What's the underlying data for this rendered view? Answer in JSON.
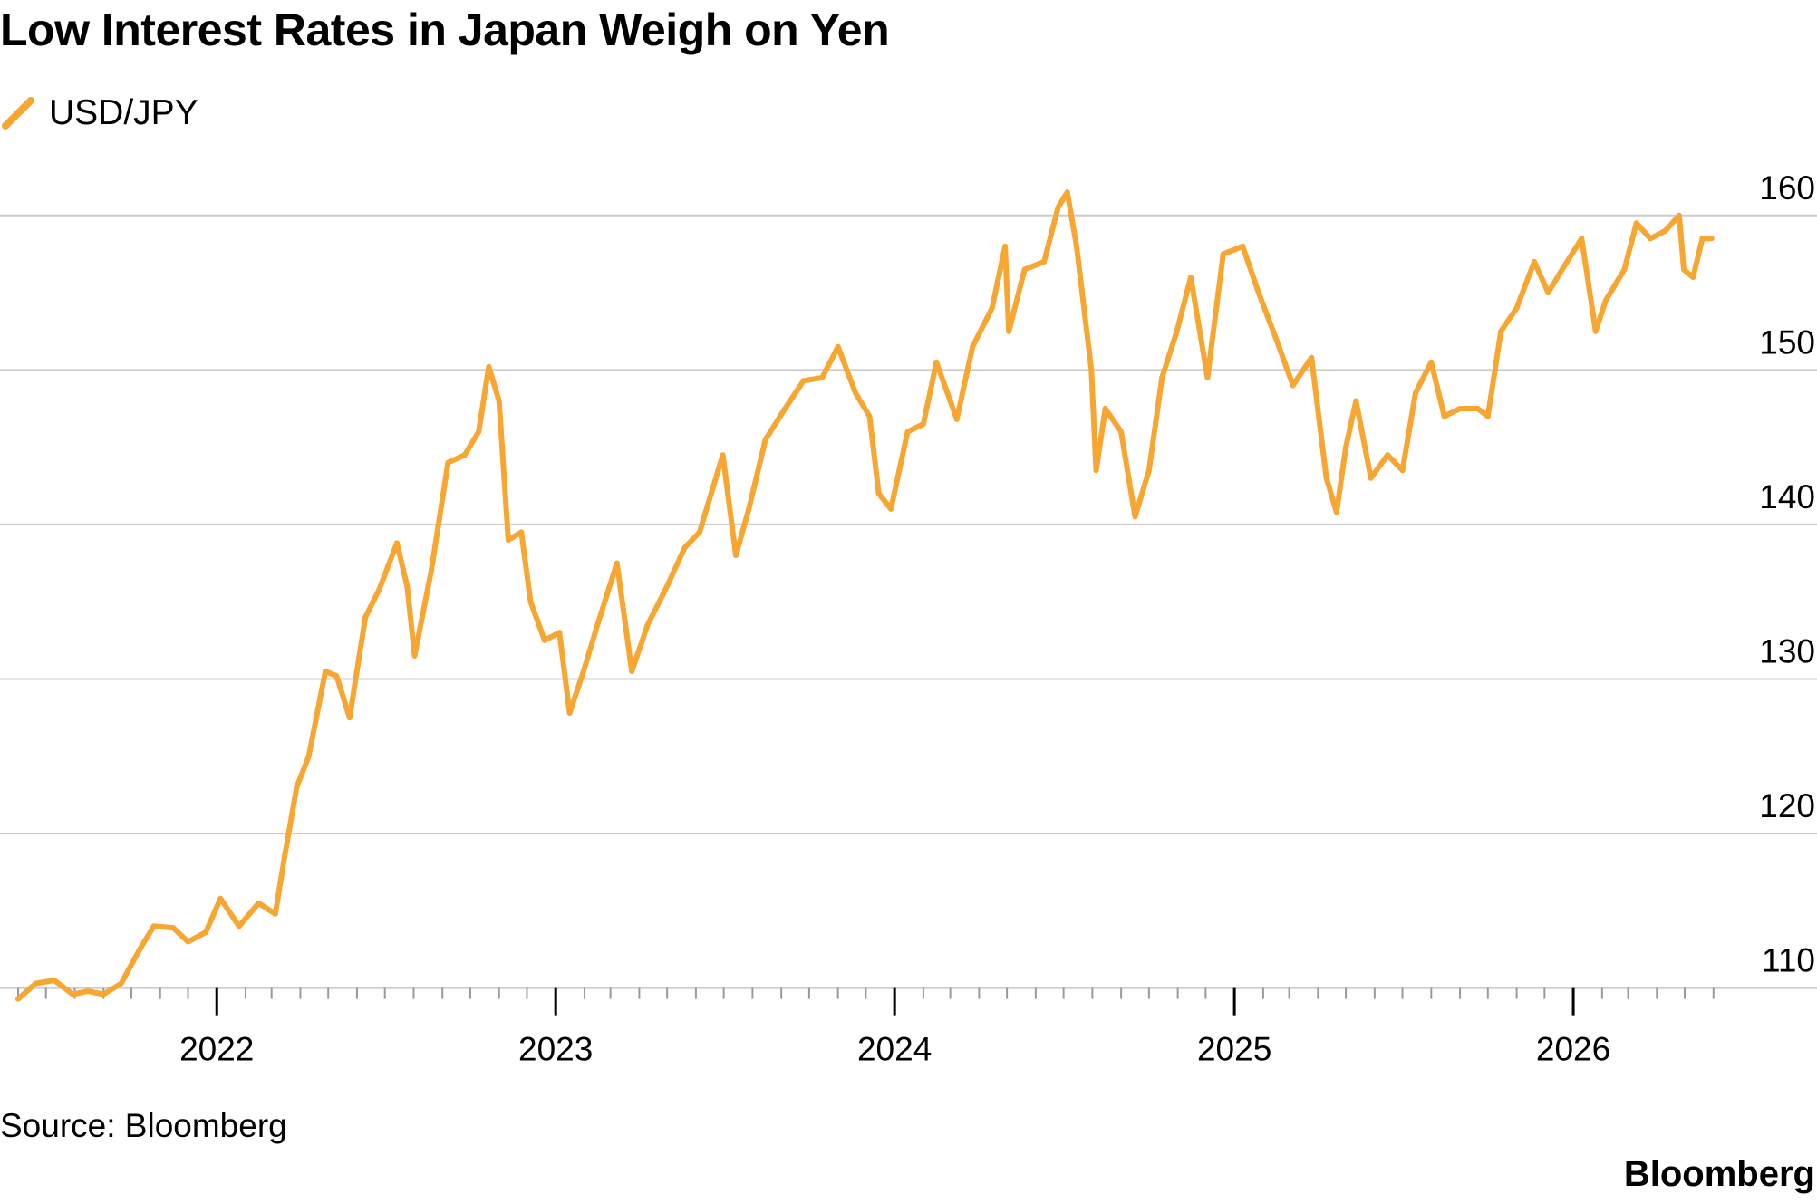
{
  "title": "Low Interest Rates in Japan Weigh on Yen",
  "source": "Source: Bloomberg",
  "brand": "Bloomberg",
  "colors": {
    "line": "#f7a631",
    "grid": "#cccccc",
    "text": "#000000"
  },
  "chart_data": {
    "type": "line",
    "title": "Low Interest Rates in Japan Weigh on Yen",
    "xlabel": "",
    "ylabel": "",
    "grid": true,
    "legend_placement": "top-left",
    "xlim": [
      "2021-06-01",
      "2026-06-10"
    ],
    "ylim": [
      109,
      161
    ],
    "y_ticks": [
      110,
      120,
      130,
      140,
      150,
      160
    ],
    "x_tick_labels": [
      "2022",
      "2023",
      "2024",
      "2025",
      "2026"
    ],
    "x_tick_dates": [
      "2022-01-01",
      "2023-01-01",
      "2024-01-01",
      "2025-01-01",
      "2026-01-01"
    ],
    "series": [
      {
        "name": "USD/JPY",
        "color": "#f7a631",
        "points": [
          [
            "2021-06-01",
            109.3
          ],
          [
            "2021-06-20",
            110.3
          ],
          [
            "2021-07-10",
            110.5
          ],
          [
            "2021-07-30",
            109.6
          ],
          [
            "2021-08-15",
            109.8
          ],
          [
            "2021-09-01",
            109.6
          ],
          [
            "2021-09-20",
            110.3
          ],
          [
            "2021-10-10",
            112.5
          ],
          [
            "2021-10-25",
            114.0
          ],
          [
            "2021-11-15",
            113.9
          ],
          [
            "2021-12-01",
            113.0
          ],
          [
            "2021-12-20",
            113.6
          ],
          [
            "2022-01-05",
            115.8
          ],
          [
            "2022-01-25",
            114.0
          ],
          [
            "2022-02-15",
            115.5
          ],
          [
            "2022-03-05",
            114.8
          ],
          [
            "2022-03-15",
            118.5
          ],
          [
            "2022-03-28",
            123.0
          ],
          [
            "2022-04-10",
            125.0
          ],
          [
            "2022-04-28",
            130.5
          ],
          [
            "2022-05-10",
            130.2
          ],
          [
            "2022-05-24",
            127.5
          ],
          [
            "2022-06-10",
            134.0
          ],
          [
            "2022-06-25",
            135.8
          ],
          [
            "2022-07-14",
            138.8
          ],
          [
            "2022-07-25",
            136.0
          ],
          [
            "2022-08-02",
            131.5
          ],
          [
            "2022-08-20",
            137.0
          ],
          [
            "2022-09-07",
            144.0
          ],
          [
            "2022-09-25",
            144.5
          ],
          [
            "2022-10-10",
            146.0
          ],
          [
            "2022-10-21",
            150.2
          ],
          [
            "2022-11-01",
            148.0
          ],
          [
            "2022-11-11",
            139.0
          ],
          [
            "2022-11-25",
            139.5
          ],
          [
            "2022-12-05",
            135.0
          ],
          [
            "2022-12-20",
            132.5
          ],
          [
            "2023-01-05",
            133.0
          ],
          [
            "2023-01-16",
            127.8
          ],
          [
            "2023-01-31",
            130.5
          ],
          [
            "2023-02-15",
            133.5
          ],
          [
            "2023-03-08",
            137.5
          ],
          [
            "2023-03-24",
            130.5
          ],
          [
            "2023-04-10",
            133.5
          ],
          [
            "2023-05-01",
            136.0
          ],
          [
            "2023-05-20",
            138.5
          ],
          [
            "2023-06-05",
            139.5
          ],
          [
            "2023-06-30",
            144.5
          ],
          [
            "2023-07-14",
            138.0
          ],
          [
            "2023-07-28",
            141.0
          ],
          [
            "2023-08-15",
            145.5
          ],
          [
            "2023-09-05",
            147.5
          ],
          [
            "2023-09-25",
            149.3
          ],
          [
            "2023-10-15",
            149.5
          ],
          [
            "2023-11-01",
            151.5
          ],
          [
            "2023-11-20",
            148.5
          ],
          [
            "2023-12-05",
            147.0
          ],
          [
            "2023-12-15",
            142.0
          ],
          [
            "2023-12-28",
            141.0
          ],
          [
            "2024-01-15",
            146.0
          ],
          [
            "2024-02-01",
            146.5
          ],
          [
            "2024-02-15",
            150.5
          ],
          [
            "2024-03-08",
            146.8
          ],
          [
            "2024-03-25",
            151.5
          ],
          [
            "2024-04-15",
            154.0
          ],
          [
            "2024-04-29",
            158.0
          ],
          [
            "2024-05-03",
            152.5
          ],
          [
            "2024-05-20",
            156.5
          ],
          [
            "2024-06-10",
            157.0
          ],
          [
            "2024-06-25",
            160.5
          ],
          [
            "2024-07-05",
            161.5
          ],
          [
            "2024-07-15",
            158.0
          ],
          [
            "2024-07-31",
            150.0
          ],
          [
            "2024-08-05",
            143.5
          ],
          [
            "2024-08-15",
            147.5
          ],
          [
            "2024-09-01",
            146.0
          ],
          [
            "2024-09-16",
            140.5
          ],
          [
            "2024-10-01",
            143.5
          ],
          [
            "2024-10-15",
            149.5
          ],
          [
            "2024-10-31",
            152.5
          ],
          [
            "2024-11-15",
            156.0
          ],
          [
            "2024-12-03",
            149.5
          ],
          [
            "2024-12-20",
            157.5
          ],
          [
            "2025-01-10",
            158.0
          ],
          [
            "2025-01-27",
            155.0
          ],
          [
            "2025-02-15",
            152.0
          ],
          [
            "2025-03-05",
            149.0
          ],
          [
            "2025-03-25",
            150.8
          ],
          [
            "2025-04-10",
            143.0
          ],
          [
            "2025-04-21",
            140.8
          ],
          [
            "2025-05-01",
            145.0
          ],
          [
            "2025-05-12",
            148.0
          ],
          [
            "2025-05-28",
            143.0
          ],
          [
            "2025-06-15",
            144.5
          ],
          [
            "2025-07-01",
            143.5
          ],
          [
            "2025-07-15",
            148.5
          ],
          [
            "2025-08-01",
            150.5
          ],
          [
            "2025-08-15",
            147.0
          ],
          [
            "2025-09-01",
            147.5
          ],
          [
            "2025-09-20",
            147.5
          ],
          [
            "2025-10-01",
            147.0
          ],
          [
            "2025-10-15",
            152.5
          ],
          [
            "2025-11-01",
            154.0
          ],
          [
            "2025-11-20",
            157.0
          ],
          [
            "2025-12-05",
            155.0
          ],
          [
            "2025-12-20",
            156.5
          ],
          [
            "2026-01-10",
            158.5
          ],
          [
            "2026-01-25",
            152.5
          ],
          [
            "2026-02-05",
            154.5
          ],
          [
            "2026-02-25",
            156.5
          ],
          [
            "2026-03-10",
            159.5
          ],
          [
            "2026-03-25",
            158.5
          ],
          [
            "2026-04-10",
            159.0
          ],
          [
            "2026-04-25",
            160.0
          ],
          [
            "2026-04-30",
            156.5
          ],
          [
            "2026-05-10",
            156.0
          ],
          [
            "2026-05-20",
            158.5
          ],
          [
            "2026-05-30",
            158.5
          ]
        ]
      }
    ]
  }
}
